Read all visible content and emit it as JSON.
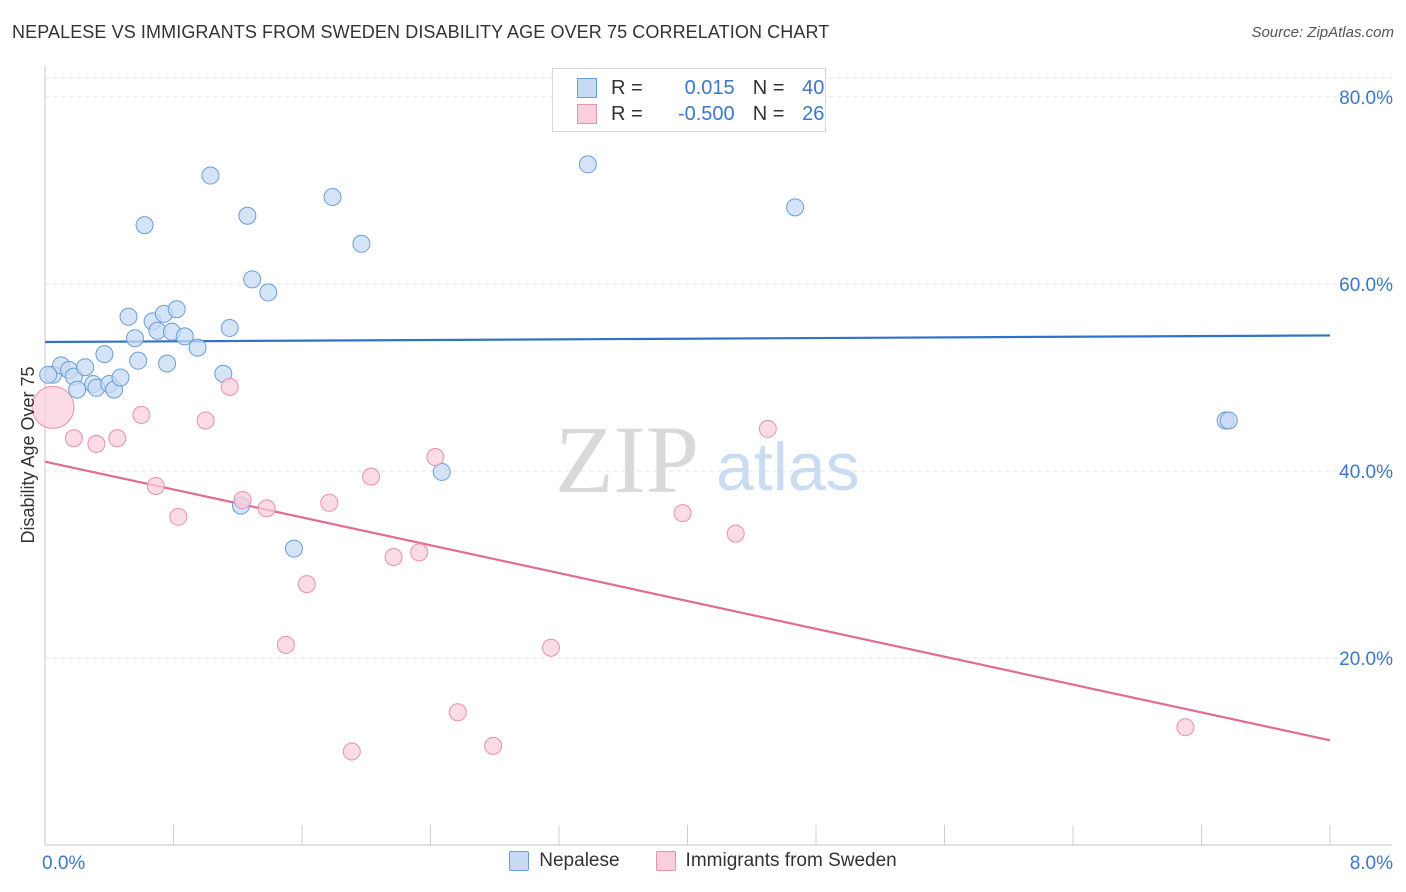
{
  "title": "NEPALESE VS IMMIGRANTS FROM SWEDEN DISABILITY AGE OVER 75 CORRELATION CHART",
  "source": "Source: ZipAtlas.com",
  "stats": {
    "rows": [
      {
        "r_label": "R =",
        "r_value": "0.015",
        "n_label": "N =",
        "n_value": "40",
        "fill": "#c7daf3",
        "stroke": "#6a9ed8"
      },
      {
        "r_label": "R =",
        "r_value": "-0.500",
        "n_label": "N =",
        "n_value": "26",
        "fill": "#f9cfdc",
        "stroke": "#e691ad"
      }
    ]
  },
  "watermark": {
    "zip": "ZIP",
    "atlas": "atlas"
  },
  "chart_data": {
    "type": "scatter",
    "ylabel": "Disability Age Over 75",
    "xlim": [
      0,
      8
    ],
    "ylim": [
      0,
      82
    ],
    "x_tick_labels": [
      "0.0%",
      "8.0%"
    ],
    "y_ticks": [
      20,
      40,
      60,
      80
    ],
    "y_tick_labels": [
      "20.0%",
      "40.0%",
      "60.0%",
      "80.0%"
    ],
    "grid": true,
    "series": [
      {
        "name": "Nepalese",
        "color": "#6a9ed8",
        "fill": "#c7daf3",
        "line_color": "#2f72c8",
        "trend": [
          [
            0,
            53.8
          ],
          [
            8,
            54.5
          ]
        ],
        "points": [
          [
            0.05,
            50.3
          ],
          [
            0.1,
            51.3
          ],
          [
            0.15,
            50.8
          ],
          [
            0.18,
            50.1
          ],
          [
            0.2,
            48.7
          ],
          [
            0.25,
            51.1
          ],
          [
            0.3,
            49.3
          ],
          [
            0.32,
            48.9
          ],
          [
            0.37,
            52.5
          ],
          [
            0.4,
            49.3
          ],
          [
            0.43,
            48.7
          ],
          [
            0.47,
            50.0
          ],
          [
            0.52,
            56.5
          ],
          [
            0.56,
            54.2
          ],
          [
            0.58,
            51.8
          ],
          [
            0.62,
            66.3
          ],
          [
            0.67,
            56.0
          ],
          [
            0.7,
            55.0
          ],
          [
            0.74,
            56.8
          ],
          [
            0.76,
            51.5
          ],
          [
            0.79,
            54.9
          ],
          [
            0.82,
            57.3
          ],
          [
            0.87,
            54.4
          ],
          [
            0.95,
            53.2
          ],
          [
            1.03,
            71.6
          ],
          [
            1.11,
            50.4
          ],
          [
            1.15,
            55.3
          ],
          [
            1.22,
            36.3
          ],
          [
            1.26,
            67.3
          ],
          [
            1.29,
            60.5
          ],
          [
            1.39,
            59.1
          ],
          [
            1.55,
            31.7
          ],
          [
            1.79,
            69.3
          ],
          [
            1.97,
            64.3
          ],
          [
            2.47,
            39.9
          ],
          [
            3.38,
            72.8
          ],
          [
            4.67,
            68.2
          ],
          [
            7.35,
            45.4
          ],
          [
            7.37,
            45.4
          ],
          [
            0.02,
            50.3
          ]
        ]
      },
      {
        "name": "Immigrants from Sweden",
        "color": "#e691ad",
        "fill": "#f9cfdc",
        "line_color": "#e26b95",
        "trend": [
          [
            0,
            41.0
          ],
          [
            8,
            11.2
          ]
        ],
        "points": [
          [
            0.05,
            46.8
          ],
          [
            0.18,
            43.5
          ],
          [
            0.32,
            42.9
          ],
          [
            0.45,
            43.5
          ],
          [
            0.6,
            46.0
          ],
          [
            0.69,
            38.4
          ],
          [
            0.83,
            35.1
          ],
          [
            1.0,
            45.4
          ],
          [
            1.15,
            49.0
          ],
          [
            1.23,
            36.9
          ],
          [
            1.38,
            36.0
          ],
          [
            1.5,
            21.4
          ],
          [
            1.63,
            27.9
          ],
          [
            1.77,
            36.6
          ],
          [
            1.91,
            10.0
          ],
          [
            2.03,
            39.4
          ],
          [
            2.17,
            30.8
          ],
          [
            2.33,
            31.3
          ],
          [
            2.43,
            41.5
          ],
          [
            2.57,
            14.2
          ],
          [
            2.79,
            10.6
          ],
          [
            3.15,
            21.1
          ],
          [
            3.97,
            35.5
          ],
          [
            4.3,
            33.3
          ],
          [
            4.5,
            44.5
          ],
          [
            7.1,
            12.6
          ]
        ]
      }
    ]
  }
}
